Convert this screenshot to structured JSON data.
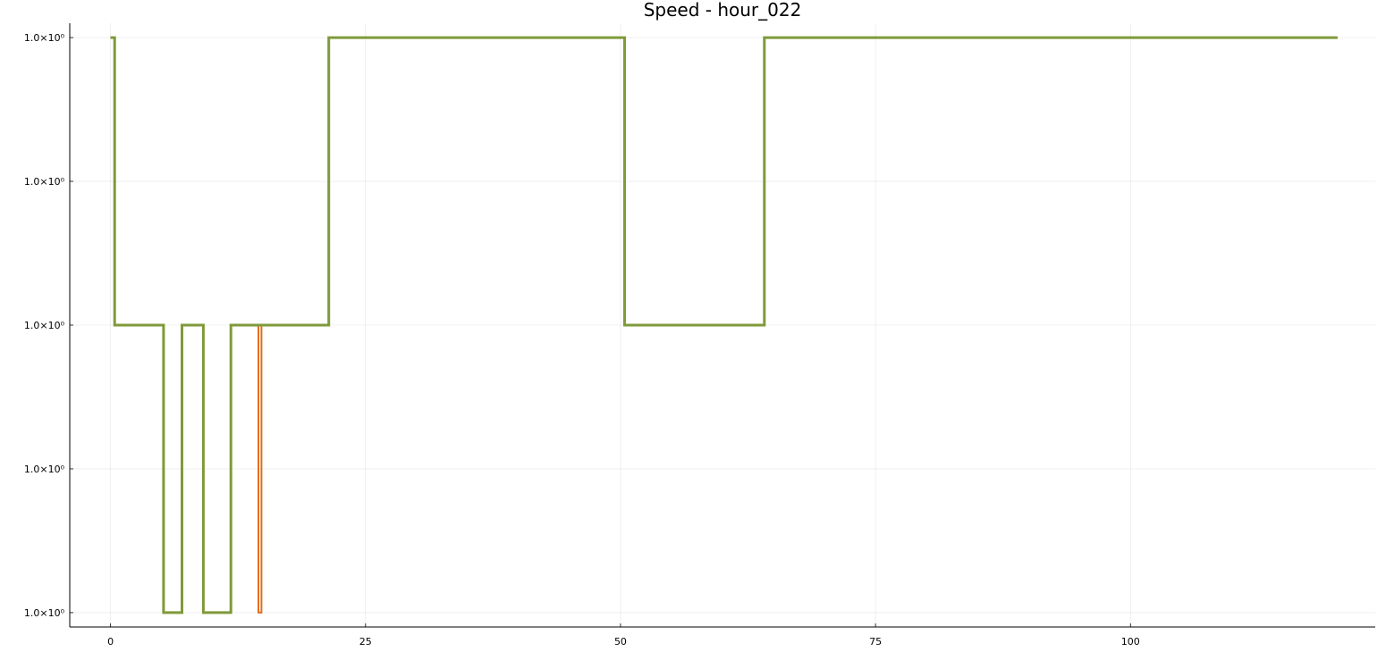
{
  "chart_data": {
    "type": "line",
    "title": "Speed - hour_022",
    "xlabel": "",
    "ylabel": "",
    "xlim": [
      -4,
      124
    ],
    "xticks": [
      0,
      25,
      50,
      75,
      100
    ],
    "xtick_labels": [
      "0",
      "25",
      "50",
      "75",
      "100"
    ],
    "ylim": [
      -0.1,
      4.1
    ],
    "yticks": [
      0,
      1,
      2,
      3,
      4
    ],
    "ytick_labels": [
      "1.0×10⁰",
      "1.0×10⁰",
      "1.0×10⁰",
      "1.0×10⁰",
      "1.0×10⁰"
    ],
    "grid": true,
    "legend": "none",
    "series": [
      {
        "color": "#e26f1f",
        "step": [
          [
            0,
            4
          ],
          [
            0.4,
            4
          ],
          [
            0.4,
            2
          ],
          [
            5.2,
            2
          ],
          [
            5.2,
            0
          ],
          [
            7.0,
            0
          ],
          [
            7.0,
            2
          ],
          [
            9.1,
            2
          ],
          [
            9.1,
            0
          ],
          [
            11.8,
            0
          ],
          [
            11.8,
            2
          ],
          [
            14.5,
            2
          ],
          [
            14.5,
            0
          ],
          [
            14.8,
            0
          ],
          [
            14.8,
            2
          ],
          [
            21.4,
            2
          ],
          [
            21.4,
            4
          ],
          [
            50.4,
            4
          ],
          [
            50.4,
            2
          ],
          [
            64.1,
            2
          ],
          [
            64.1,
            4
          ],
          [
            120.3,
            4
          ]
        ]
      },
      {
        "color": "#7f9a3a",
        "step": [
          [
            0,
            4
          ],
          [
            0.4,
            4
          ],
          [
            0.4,
            2
          ],
          [
            5.2,
            2
          ],
          [
            5.2,
            0
          ],
          [
            7.0,
            0
          ],
          [
            7.0,
            2
          ],
          [
            9.1,
            2
          ],
          [
            9.1,
            0
          ],
          [
            11.8,
            0
          ],
          [
            11.8,
            2
          ],
          [
            21.4,
            2
          ],
          [
            21.4,
            4
          ],
          [
            50.4,
            4
          ],
          [
            50.4,
            2
          ],
          [
            64.1,
            2
          ],
          [
            64.1,
            4
          ],
          [
            120.3,
            4
          ]
        ]
      }
    ]
  }
}
